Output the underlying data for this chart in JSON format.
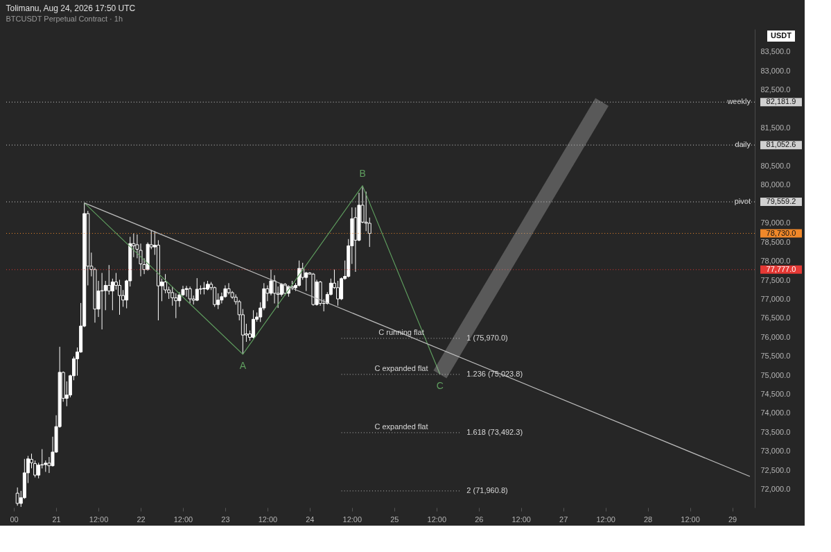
{
  "chart_data": {
    "type": "candlestick",
    "title": "Tolimanu, Aug 24, 2026 17:50 UTC",
    "subtitle": "BTCUSDT Perpetual Contract · 1h",
    "ylabel": "USDT",
    "color": "#ffffff",
    "x": [
      "2026-08-20T13:00",
      "2026-08-20T14:00",
      "2026-08-20T15:00",
      "2026-08-20T16:00",
      "2026-08-20T17:00",
      "2026-08-20T18:00",
      "2026-08-20T19:00",
      "2026-08-20T20:00",
      "2026-08-20T21:00",
      "2026-08-20T22:00",
      "2026-08-20T23:00",
      "2026-08-21T00:00",
      "2026-08-21T01:00",
      "2026-08-21T02:00",
      "2026-08-21T03:00",
      "2026-08-21T04:00",
      "2026-08-21T05:00",
      "2026-08-21T06:00",
      "2026-08-21T07:00",
      "2026-08-21T08:00",
      "2026-08-21T09:00",
      "2026-08-21T10:00",
      "2026-08-21T11:00",
      "2026-08-21T12:00",
      "2026-08-21T13:00",
      "2026-08-21T14:00",
      "2026-08-21T15:00",
      "2026-08-21T16:00",
      "2026-08-21T17:00",
      "2026-08-21T18:00",
      "2026-08-21T19:00",
      "2026-08-21T20:00",
      "2026-08-21T21:00",
      "2026-08-21T22:00",
      "2026-08-21T23:00",
      "2026-08-22T00:00",
      "2026-08-22T01:00",
      "2026-08-22T02:00",
      "2026-08-22T03:00",
      "2026-08-22T04:00",
      "2026-08-22T05:00",
      "2026-08-22T06:00",
      "2026-08-22T07:00",
      "2026-08-22T08:00",
      "2026-08-22T09:00",
      "2026-08-22T10:00",
      "2026-08-22T11:00",
      "2026-08-22T12:00",
      "2026-08-22T13:00",
      "2026-08-22T14:00",
      "2026-08-22T15:00",
      "2026-08-22T16:00",
      "2026-08-22T17:00",
      "2026-08-22T18:00",
      "2026-08-22T19:00",
      "2026-08-22T20:00",
      "2026-08-22T21:00",
      "2026-08-22T22:00",
      "2026-08-22T23:00",
      "2026-08-23T00:00",
      "2026-08-23T01:00",
      "2026-08-23T02:00",
      "2026-08-23T03:00",
      "2026-08-23T04:00",
      "2026-08-23T05:00",
      "2026-08-23T06:00",
      "2026-08-23T07:00",
      "2026-08-23T08:00",
      "2026-08-23T09:00",
      "2026-08-23T10:00",
      "2026-08-23T11:00",
      "2026-08-23T12:00",
      "2026-08-23T13:00",
      "2026-08-23T14:00",
      "2026-08-23T15:00",
      "2026-08-23T16:00",
      "2026-08-23T17:00",
      "2026-08-23T18:00",
      "2026-08-23T19:00",
      "2026-08-23T20:00",
      "2026-08-23T21:00",
      "2026-08-23T22:00",
      "2026-08-23T23:00",
      "2026-08-24T00:00",
      "2026-08-24T01:00",
      "2026-08-24T02:00",
      "2026-08-24T03:00",
      "2026-08-24T04:00",
      "2026-08-24T05:00",
      "2026-08-24T06:00",
      "2026-08-24T07:00",
      "2026-08-24T08:00",
      "2026-08-24T09:00",
      "2026-08-24T10:00",
      "2026-08-24T11:00",
      "2026-08-24T12:00",
      "2026-08-24T13:00",
      "2026-08-24T14:00",
      "2026-08-24T15:00",
      "2026-08-24T16:00",
      "2026-08-24T17:00"
    ],
    "ohlc": [
      [
        71900,
        72050,
        71570,
        71630
      ],
      [
        71630,
        71960,
        71540,
        71780
      ],
      [
        71780,
        72800,
        71750,
        72434
      ],
      [
        72434,
        72879,
        72166,
        72802
      ],
      [
        72790,
        72938,
        72553,
        72700
      ],
      [
        72680,
        72760,
        72315,
        72374
      ],
      [
        72374,
        72700,
        72290,
        72640
      ],
      [
        72640,
        73057,
        72550,
        72650
      ],
      [
        72650,
        72760,
        72460,
        72690
      ],
      [
        72690,
        72850,
        72430,
        72620
      ],
      [
        72620,
        73384,
        72600,
        72980
      ],
      [
        72980,
        73948,
        72960,
        73650
      ],
      [
        73650,
        75748,
        73620,
        75077
      ],
      [
        75076,
        75100,
        74304,
        74394
      ],
      [
        74394,
        74839,
        74186,
        74480
      ],
      [
        74480,
        75015,
        74420,
        74987
      ],
      [
        74987,
        75490,
        74869,
        75433
      ],
      [
        75433,
        75730,
        74990,
        75611
      ],
      [
        75611,
        76900,
        75590,
        76294
      ],
      [
        76294,
        79531,
        76265,
        79251
      ],
      [
        79251,
        79323,
        77363,
        77868
      ],
      [
        77868,
        78224,
        77600,
        77780
      ],
      [
        77780,
        77830,
        76383,
        76740
      ],
      [
        76740,
        77482,
        76532,
        77215
      ],
      [
        77215,
        77690,
        76205,
        77225
      ],
      [
        77225,
        77480,
        76710,
        77363
      ],
      [
        77363,
        77897,
        77120,
        77215
      ],
      [
        77215,
        77540,
        76710,
        77452
      ],
      [
        77452,
        77690,
        77250,
        77363
      ],
      [
        77363,
        77510,
        76590,
        77096
      ],
      [
        77096,
        77240,
        76799,
        76977
      ],
      [
        76977,
        77510,
        76760,
        77482
      ],
      [
        77482,
        78640,
        77333,
        78462
      ],
      [
        78462,
        78729,
        78105,
        78402
      ],
      [
        78432,
        78700,
        78076,
        78313
      ],
      [
        78284,
        78462,
        77601,
        77927
      ],
      [
        77910,
        78076,
        77660,
        77779
      ],
      [
        77779,
        78492,
        77750,
        78444
      ],
      [
        78432,
        78818,
        78314,
        78373
      ],
      [
        78373,
        78789,
        78165,
        78420
      ],
      [
        78420,
        78551,
        76443,
        77351
      ],
      [
        77351,
        77541,
        76947,
        77452
      ],
      [
        77452,
        77660,
        77155,
        77244
      ],
      [
        77244,
        77330,
        77007,
        77173
      ],
      [
        77173,
        77330,
        76829,
        77036
      ],
      [
        77036,
        77155,
        76502,
        76959
      ],
      [
        76959,
        77185,
        76799,
        77114
      ],
      [
        77114,
        77351,
        77090,
        77256
      ],
      [
        77256,
        77351,
        77066,
        77280
      ],
      [
        77274,
        77330,
        76888,
        77007
      ],
      [
        77007,
        77096,
        76858,
        76971
      ],
      [
        76971,
        77553,
        76950,
        77262
      ],
      [
        77262,
        77363,
        77126,
        77274
      ],
      [
        77274,
        77452,
        77126,
        77286
      ],
      [
        77262,
        77482,
        77233,
        77393
      ],
      [
        77393,
        77452,
        77240,
        77304
      ],
      [
        77304,
        77330,
        76799,
        76858
      ],
      [
        76858,
        77155,
        76740,
        76977
      ],
      [
        76977,
        77173,
        76888,
        77066
      ],
      [
        77066,
        77363,
        77036,
        77274
      ],
      [
        77274,
        77422,
        77126,
        77173
      ],
      [
        77173,
        77214,
        77007,
        77054
      ],
      [
        77054,
        77126,
        76858,
        76935
      ],
      [
        76935,
        76977,
        76443,
        76591
      ],
      [
        76591,
        76740,
        75552,
        76057
      ],
      [
        76087,
        76354,
        75878,
        76057
      ],
      [
        76087,
        76176,
        75908,
        75997
      ],
      [
        75997,
        76710,
        75968,
        76472
      ],
      [
        76472,
        76650,
        76410,
        76532
      ],
      [
        76532,
        76920,
        76400,
        76769
      ],
      [
        76769,
        77422,
        76710,
        77274
      ],
      [
        77274,
        77363,
        76947,
        77155
      ],
      [
        77155,
        77779,
        77100,
        77481
      ],
      [
        77481,
        77630,
        76888,
        77155
      ],
      [
        77155,
        77333,
        76769,
        77125
      ],
      [
        77125,
        77422,
        77070,
        77393
      ],
      [
        77393,
        77422,
        77096,
        77155
      ],
      [
        77155,
        77363,
        77066,
        77333
      ],
      [
        77333,
        77482,
        77240,
        77300
      ],
      [
        77300,
        77422,
        77214,
        77363
      ],
      [
        77363,
        78016,
        77330,
        77808
      ],
      [
        77808,
        77957,
        77511,
        77571
      ],
      [
        77571,
        77720,
        77214,
        77690
      ],
      [
        77690,
        77710,
        77660,
        77660
      ],
      [
        77660,
        77690,
        76829,
        76858
      ],
      [
        76858,
        77511,
        76829,
        77452
      ],
      [
        77452,
        77482,
        76829,
        76888
      ],
      [
        76888,
        76999,
        76680,
        76888
      ],
      [
        76888,
        77185,
        76858,
        77125
      ],
      [
        77125,
        77541,
        77096,
        77422
      ],
      [
        77422,
        77779,
        77274,
        77304
      ],
      [
        77304,
        77482,
        76829,
        77007
      ],
      [
        77007,
        77571,
        76977,
        77541
      ],
      [
        77541,
        78016,
        77511,
        77600
      ],
      [
        77600,
        78580,
        77570,
        78402
      ],
      [
        78402,
        79412,
        77927,
        79115
      ],
      [
        79145,
        79412,
        77719,
        78551
      ],
      [
        78551,
        79798,
        78522,
        79471
      ],
      [
        79471,
        79982,
        78996,
        79026
      ],
      [
        79026,
        79828,
        78788,
        78996
      ],
      [
        78996,
        79145,
        78373,
        78730
      ]
    ],
    "series": [
      {
        "type": "line",
        "color": "#5f9e5f",
        "x": [
          "2026-08-21T08:00",
          "2026-08-23T05:00",
          "2026-08-24T15:00",
          "2026-08-25T13:00"
        ],
        "values": [
          79531,
          75552,
          79982,
          75023.8
        ]
      },
      {
        "type": "line",
        "color": "#bdbdbd",
        "x": [
          "2026-08-21T08:00",
          "2026-08-29T05:00"
        ],
        "values": [
          79531,
          72340
        ]
      },
      {
        "type": "line",
        "name": "C running flat",
        "color": "#9a9a9a",
        "line_style": "dotted",
        "x": [
          "2026-08-24T09:00",
          "2026-08-25T19:00"
        ],
        "values": [
          75970,
          75970
        ],
        "value_labels": [
          null,
          "1 (75,970.0)"
        ]
      },
      {
        "type": "line",
        "name": "C expanded flat",
        "color": "#9a9a9a",
        "line_style": "dotted",
        "x": [
          "2026-08-24T09:00",
          "2026-08-25T19:00"
        ],
        "values": [
          75023.8,
          75023.8
        ],
        "value_labels": [
          null,
          "1.236 (75,023.8)"
        ]
      },
      {
        "type": "line",
        "name": "C expanded flat",
        "color": "#9a9a9a",
        "line_style": "dotted",
        "x": [
          "2026-08-24T09:00",
          "2026-08-25T19:00"
        ],
        "values": [
          73492.3,
          73492.3
        ],
        "value_labels": [
          null,
          "1.618 (73,492.3)"
        ]
      },
      {
        "type": "line",
        "color": "#9a9a9a",
        "line_style": "dotted",
        "x": [
          "2026-08-24T09:00",
          "2026-08-25T19:00"
        ],
        "values": [
          71960.8,
          71960.8
        ],
        "value_labels": [
          null,
          "2 (71,960.8)"
        ]
      }
    ],
    "annotations": [
      {
        "text": "A",
        "x": "2026-08-23T05:00",
        "y": 75552
      },
      {
        "text": "B",
        "x": "2026-08-24T15:00",
        "y": 79982
      },
      {
        "text": "C",
        "x": "2026-08-25T13:00",
        "y": 75023.8
      },
      "82,181.9",
      "81,052.6",
      "79,559.2",
      "78,730.0",
      "77,777.0"
    ],
    "ref_lines": [
      {
        "axis": "y",
        "value": 82181.9,
        "label": "weekly",
        "color": "#d0d0d0",
        "line_style": "dotted"
      },
      {
        "axis": "y",
        "value": 81052.6,
        "label": "daily",
        "color": "#d0d0d0",
        "line_style": "dotted"
      },
      {
        "axis": "y",
        "value": 79559.2,
        "label": "pivot",
        "color": "#d0d0d0",
        "line_style": "dotted"
      },
      {
        "axis": "y",
        "value": 78730.0,
        "color": "#f0882a",
        "line_style": "dotted"
      },
      {
        "axis": "y",
        "value": 77777.0,
        "color": "#e53935",
        "line_style": "dotted"
      }
    ],
    "xlim": [
      "2026-08-20T10:48",
      "2026-08-29T05:24"
    ],
    "xticks": [
      {
        "value": "2026-08-20T12:00",
        "label": "00"
      },
      {
        "value": "2026-08-21T00:00",
        "label": "21"
      },
      {
        "value": "2026-08-21T12:00",
        "label": "12:00"
      },
      {
        "value": "2026-08-22T00:00",
        "label": "22"
      },
      {
        "value": "2026-08-22T12:00",
        "label": "12:00"
      },
      {
        "value": "2026-08-23T00:00",
        "label": "23"
      },
      {
        "value": "2026-08-23T12:00",
        "label": "12:00"
      },
      {
        "value": "2026-08-24T00:00",
        "label": "24"
      },
      {
        "value": "2026-08-24T12:00",
        "label": "12:00"
      },
      {
        "value": "2026-08-25T00:00",
        "label": "25"
      },
      {
        "value": "2026-08-25T12:00",
        "label": "12:00"
      },
      {
        "value": "2026-08-26T00:00",
        "label": "26"
      },
      {
        "value": "2026-08-26T12:00",
        "label": "12:00"
      },
      {
        "value": "2026-08-27T00:00",
        "label": "27"
      },
      {
        "value": "2026-08-27T12:00",
        "label": "12:00"
      },
      {
        "value": "2026-08-28T00:00",
        "label": "28"
      },
      {
        "value": "2026-08-28T12:00",
        "label": "12:00"
      },
      {
        "value": "2026-08-29T00:00",
        "label": "29"
      }
    ],
    "ylim": [
      71520,
      84100
    ],
    "yticks": [
      {
        "value": 72000,
        "label": "72,000.0"
      },
      {
        "value": 72500,
        "label": "72,500.0"
      },
      {
        "value": 73000,
        "label": "73,000.0"
      },
      {
        "value": 73500,
        "label": "73,500.0"
      },
      {
        "value": 74000,
        "label": "74,000.0"
      },
      {
        "value": 74500,
        "label": "74,500.0"
      },
      {
        "value": 75000,
        "label": "75,000.0"
      },
      {
        "value": 75500,
        "label": "75,500.0"
      },
      {
        "value": 76000,
        "label": "76,000.0"
      },
      {
        "value": 76500,
        "label": "76,500.0"
      },
      {
        "value": 77000,
        "label": "77,000.0"
      },
      {
        "value": 77500,
        "label": "77,500.0"
      },
      {
        "value": 78000,
        "label": "78,000.0"
      },
      {
        "value": 78500,
        "label": "78,500.0"
      },
      {
        "value": 79000,
        "label": "79,000.0"
      },
      {
        "value": 80000,
        "label": "80,000.0"
      },
      {
        "value": 80500,
        "label": "80,500.0"
      },
      {
        "value": 81500,
        "label": "81,500.0"
      },
      {
        "value": 82500,
        "label": "82,500.0"
      },
      {
        "value": 83000,
        "label": "83,000.0"
      },
      {
        "value": 83500,
        "label": "83,500.0"
      }
    ],
    "grid": false
  }
}
